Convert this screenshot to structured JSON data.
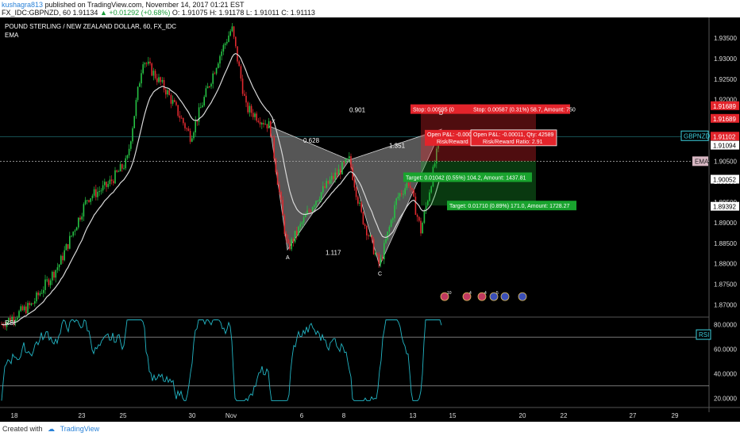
{
  "header": {
    "user": "kushagra813",
    "published": "published on TradingView.com, November 14, 2017 01:21 EST",
    "symbol_line": "FX_IDC:GBPNZD, 60",
    "last": "1.91134",
    "change": "▲ +0.01292 (+0.68%)",
    "ohlc": "O: 1.91075 H: 1.91178 L: 1.91011 C: 1.91113"
  },
  "footer": {
    "created_with": "Created with",
    "brand": "TradingView"
  },
  "chart_data": [
    {
      "type": "candlestick",
      "title": "POUND STERLING / NEW ZEALAND DOLLAR, 60, FX_IDC",
      "indicator": "EMA",
      "symbol_tag": "GBPNZD",
      "ema_tag": "EMA",
      "ylim": [
        1.867,
        1.9385
      ],
      "y_ticks": [
        "1.93500",
        "1.93000",
        "1.92500",
        "1.92000",
        "1.90500",
        "1.90000",
        "1.89500",
        "1.89000",
        "1.88500",
        "1.88000",
        "1.87500",
        "1.87000"
      ],
      "x_ticks": [
        "18",
        "23",
        "25",
        "30",
        "Nov",
        "6",
        "8",
        "13",
        "15",
        "20",
        "22",
        "27",
        "29"
      ],
      "price_tags": [
        {
          "text": "1.91689",
          "bg": "#e3242b"
        },
        {
          "text": "1.91689",
          "bg": "#e3242b"
        },
        {
          "text": "1.91102",
          "bg": "#e3242b"
        },
        {
          "text": "1.91094",
          "bg": "#ffffff"
        },
        {
          "text": "1.90052",
          "bg": "#ffffff"
        },
        {
          "text": "1.89392",
          "bg": "#ffffff"
        }
      ],
      "pattern_points": {
        "X": 1.9135,
        "A": 1.8834,
        "B": 1.9053,
        "C": 1.8795,
        "D": 1.9128
      },
      "ratios": [
        "0.628",
        "0.901",
        "1.351",
        "1.117"
      ],
      "positions": [
        {
          "stop": "Stop: 0.00595 (0",
          "stop2": "Stop: 0.00587 (0.31%) 58.7, Amount: 750",
          "open": "Open P&L: -0.000",
          "open2": "Open P&L: -0.00011, Qty: 42589",
          "rr": "Risk/Reward",
          "rr2": "Risk/Reward Ratio: 2.91",
          "target": "Target: 0.01042 (0.55%) 104.2, Amount: 1437.81",
          "target2": "Target: 0.01710 (0.89%) 171.0, Amount: 1728.27"
        }
      ],
      "event_icons": [
        "10",
        "4",
        "4",
        "5",
        ""
      ]
    },
    {
      "type": "line",
      "title": "RSI",
      "ylim": [
        15,
        85
      ],
      "y_ticks": [
        "80.0000",
        "60.0000",
        "40.0000",
        "20.0000"
      ],
      "rsi_tag": "RSI",
      "bands": [
        70,
        30
      ]
    }
  ],
  "colors": {
    "up": "#26c244",
    "down": "#e0292f",
    "ema": "#d8d8d8",
    "rsi": "#22b5c4",
    "stop": "#e3242b",
    "target": "#19a32e",
    "cyan": "#3ccfdd"
  }
}
